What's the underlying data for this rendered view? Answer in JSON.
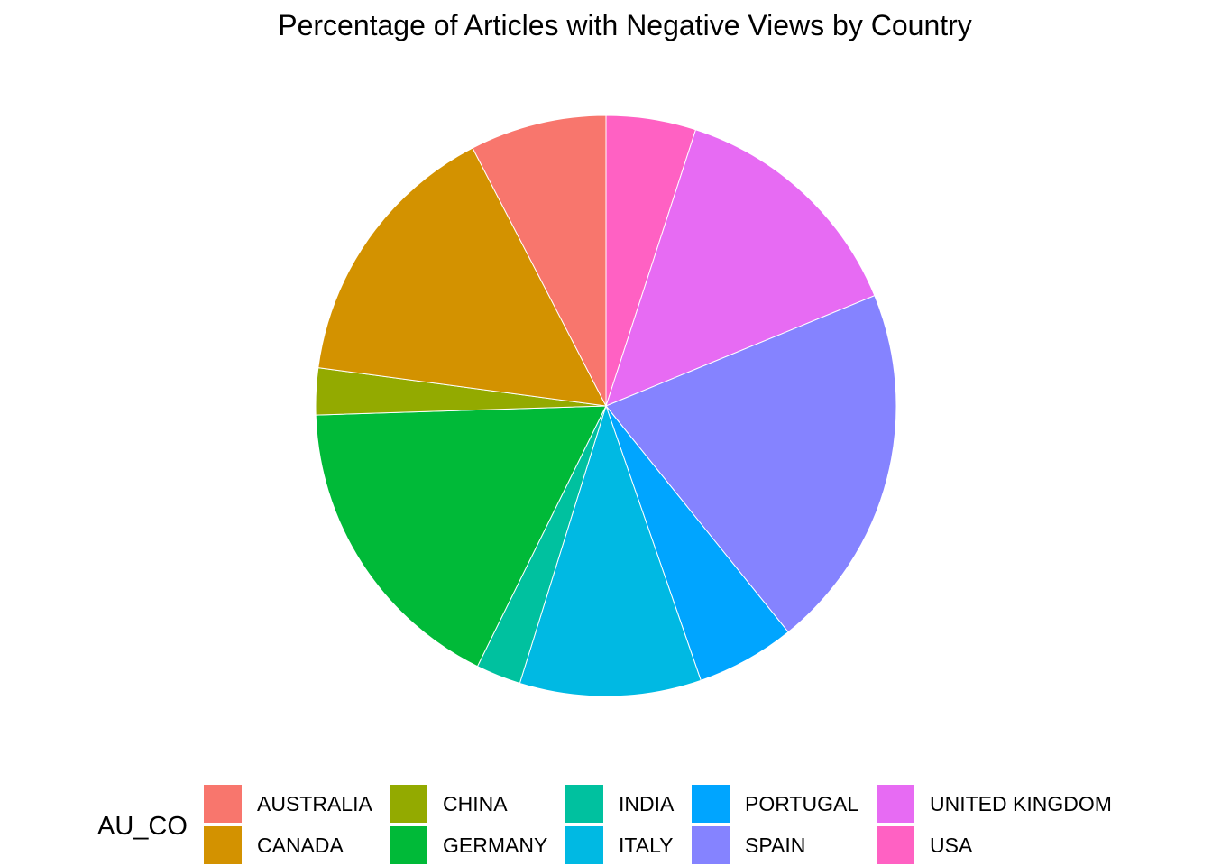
{
  "chart_data": {
    "type": "pie",
    "title": "Percentage of Articles with Negative Views by Country",
    "legend": {
      "title": "AU_CO",
      "position": "bottom",
      "layout": "5 columns x 2 rows"
    },
    "direction": "clockwise from 12 o'clock, reverse legend order",
    "slices": [
      {
        "label": "AUSTRALIA",
        "value": 7.6,
        "color": "#F8766D"
      },
      {
        "label": "CANADA",
        "value": 15.3,
        "color": "#D39200"
      },
      {
        "label": "CHINA",
        "value": 2.6,
        "color": "#93AA00"
      },
      {
        "label": "GERMANY",
        "value": 17.2,
        "color": "#00BA38"
      },
      {
        "label": "INDIA",
        "value": 2.5,
        "color": "#00C19F"
      },
      {
        "label": "ITALY",
        "value": 10.1,
        "color": "#00B9E3"
      },
      {
        "label": "PORTUGAL",
        "value": 5.5,
        "color": "#00A5FF"
      },
      {
        "label": "SPAIN",
        "value": 20.4,
        "color": "#8583FF"
      },
      {
        "label": "UNITED KINGDOM",
        "value": 13.8,
        "color": "#E76BF3"
      },
      {
        "label": "USA",
        "value": 5.0,
        "color": "#FF61C3"
      }
    ]
  }
}
